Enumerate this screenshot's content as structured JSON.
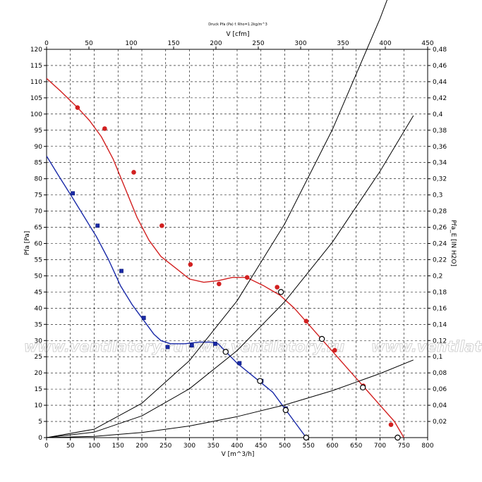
{
  "chart_data": {
    "type": "line",
    "title": "Druck Pfa (Pa) f. Rho=1.2kg/m^3",
    "xlabel": "V [m^3/h]",
    "xlabel_top": "V [cfm]",
    "ylabel": "Pfa [Pa]",
    "ylabel_right": "Pfa_E [IN H2O]",
    "xlim": [
      0,
      800
    ],
    "ylim": [
      0,
      120
    ],
    "xlim_top": [
      0,
      450
    ],
    "ylim_right": [
      0,
      0.48
    ],
    "x_ticks": [
      "0",
      "50",
      "100",
      "150",
      "200",
      "250",
      "300",
      "350",
      "400",
      "450",
      "500",
      "550",
      "600",
      "650",
      "700",
      "750",
      "800"
    ],
    "x_top_ticks": [
      "0",
      "50",
      "100",
      "150",
      "200",
      "250",
      "300",
      "350",
      "400",
      "450"
    ],
    "y_ticks": [
      "0",
      "5",
      "10",
      "15",
      "20",
      "25",
      "30",
      "35",
      "40",
      "45",
      "50",
      "55",
      "60",
      "65",
      "70",
      "75",
      "80",
      "85",
      "90",
      "95",
      "100",
      "105",
      "110",
      "115",
      "120"
    ],
    "y_right_ticks": [
      "0,02",
      "0,04",
      "0,06",
      "0,08",
      "0,1",
      "0,12",
      "0,14",
      "0,16",
      "0,18",
      "0,2",
      "0,22",
      "0,24",
      "0,26",
      "0,28",
      "0,3",
      "0,32",
      "0,34",
      "0,36",
      "0,38",
      "0,4",
      "0,42",
      "0,44",
      "0,46",
      "0,48"
    ],
    "grid": true,
    "watermark": "www.ventilatory.ru",
    "series": [
      {
        "color": "#d22020",
        "marker": "circle",
        "line": [
          [
            0,
            111
          ],
          [
            30,
            107
          ],
          [
            65,
            102
          ],
          [
            90,
            98
          ],
          [
            115,
            93
          ],
          [
            140,
            86
          ],
          [
            165,
            77
          ],
          [
            190,
            68
          ],
          [
            215,
            61
          ],
          [
            240,
            56
          ],
          [
            270,
            52.5
          ],
          [
            300,
            49
          ],
          [
            330,
            48
          ],
          [
            360,
            48.5
          ],
          [
            390,
            49.5
          ],
          [
            420,
            49.5
          ],
          [
            455,
            47
          ],
          [
            490,
            44
          ],
          [
            520,
            40
          ],
          [
            550,
            35
          ],
          [
            580,
            30
          ],
          [
            610,
            25
          ],
          [
            640,
            20
          ],
          [
            670,
            15
          ],
          [
            700,
            10
          ],
          [
            730,
            5
          ],
          [
            750,
            0
          ]
        ],
        "markers": [
          [
            65,
            102
          ],
          [
            122,
            95.5
          ],
          [
            183,
            82
          ],
          [
            242,
            65.5
          ],
          [
            302,
            53.5
          ],
          [
            362,
            47.5
          ],
          [
            421,
            49.5
          ],
          [
            484,
            46.5
          ],
          [
            545,
            36
          ],
          [
            605,
            27
          ],
          [
            665,
            16
          ],
          [
            723,
            4
          ]
        ]
      },
      {
        "color": "#1a2aa8",
        "marker": "square",
        "line": [
          [
            0,
            87
          ],
          [
            25,
            81
          ],
          [
            55,
            74
          ],
          [
            80,
            68
          ],
          [
            105,
            62
          ],
          [
            130,
            55
          ],
          [
            155,
            47
          ],
          [
            180,
            41
          ],
          [
            205,
            36
          ],
          [
            225,
            32
          ],
          [
            240,
            30
          ],
          [
            260,
            29
          ],
          [
            290,
            29
          ],
          [
            320,
            29.5
          ],
          [
            345,
            29.5
          ],
          [
            360,
            29
          ],
          [
            380,
            26
          ],
          [
            400,
            23
          ],
          [
            425,
            20
          ],
          [
            450,
            17
          ],
          [
            475,
            14
          ],
          [
            500,
            9
          ],
          [
            520,
            5
          ],
          [
            545,
            0
          ]
        ],
        "markers": [
          [
            55,
            75.5
          ],
          [
            107,
            65.5
          ],
          [
            157,
            51.5
          ],
          [
            204,
            37
          ],
          [
            254,
            28
          ],
          [
            305,
            28.5
          ],
          [
            354,
            29
          ],
          [
            405,
            23
          ],
          [
            451,
            17.5
          ],
          [
            502,
            9
          ],
          [
            545,
            0
          ]
        ]
      },
      {
        "color": "#000000",
        "marker": "none",
        "line": [
          [
            0,
            0
          ],
          [
            100,
            2.6
          ],
          [
            200,
            10.6
          ],
          [
            300,
            23.8
          ],
          [
            400,
            42.3
          ],
          [
            500,
            66.1
          ],
          [
            600,
            95.2
          ],
          [
            700,
            129.5
          ],
          [
            770,
            156.7
          ]
        ]
      },
      {
        "color": "#000000",
        "marker": "none",
        "line": [
          [
            0,
            0
          ],
          [
            100,
            1.7
          ],
          [
            200,
            6.7
          ],
          [
            300,
            15.1
          ],
          [
            400,
            26.9
          ],
          [
            500,
            42
          ],
          [
            600,
            60.4
          ],
          [
            700,
            82.3
          ],
          [
            770,
            99.5
          ]
        ]
      },
      {
        "color": "#000000",
        "marker": "none",
        "line": [
          [
            0,
            0
          ],
          [
            100,
            0.4
          ],
          [
            200,
            1.6
          ],
          [
            300,
            3.6
          ],
          [
            400,
            6.5
          ],
          [
            500,
            10.1
          ],
          [
            600,
            14.5
          ],
          [
            700,
            19.8
          ],
          [
            770,
            24
          ]
        ]
      }
    ],
    "operating_points": [
      [
        492,
        45
      ],
      [
        578,
        30.5
      ],
      [
        664,
        15.5
      ],
      [
        376,
        26.5
      ],
      [
        448,
        17.5
      ],
      [
        502,
        8.5
      ],
      [
        545,
        0
      ],
      [
        737,
        0
      ]
    ]
  }
}
